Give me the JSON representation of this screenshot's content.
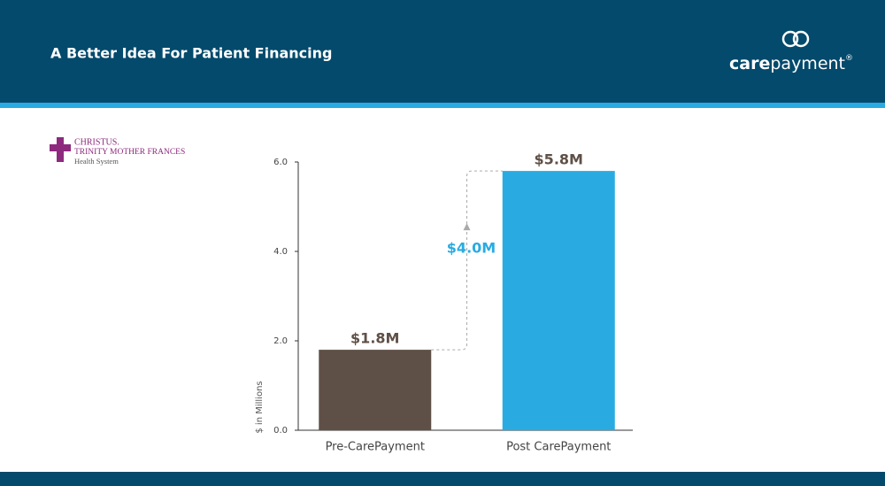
{
  "header": {
    "title": "A Better Idea For Patient Financing",
    "brand": {
      "bold": "care",
      "rest": "payment",
      "mark": "®"
    }
  },
  "client_logo": {
    "name": "CHRISTUS.",
    "line2": "TRINITY MOTHER FRANCES",
    "line3": "Health System"
  },
  "chart_data": {
    "type": "bar",
    "y_label": "$ in Millions",
    "categories": [
      "Pre-CarePayment",
      "Post CarePayment"
    ],
    "values": [
      1.8,
      5.8
    ],
    "value_labels": [
      "$1.8M",
      "$5.8M"
    ],
    "colors": [
      "#5f5047",
      "#29abe2"
    ],
    "ylim": [
      0,
      6
    ],
    "yticks": [
      {
        "value": 0,
        "label": "0.0"
      },
      {
        "value": 2,
        "label": "2.0"
      },
      {
        "value": 4,
        "label": "4.0"
      },
      {
        "value": 6,
        "label": "6.0"
      }
    ],
    "annotation": "$4.0M"
  }
}
